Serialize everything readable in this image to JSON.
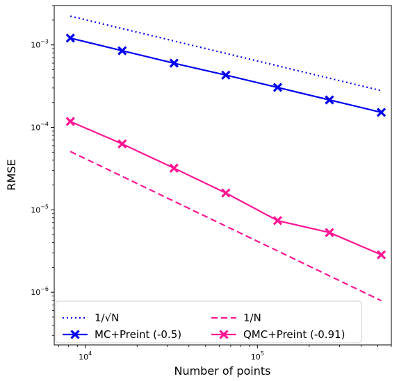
{
  "chart_data": {
    "type": "line",
    "xlabel": "Number of points",
    "ylabel": "RMSE",
    "xscale": "log",
    "yscale": "log",
    "xlim": [
      6600,
      600000
    ],
    "ylim": [
      2.3e-07,
      0.003
    ],
    "x_ticks": [
      {
        "value": 10000,
        "base": "10",
        "exp": "4"
      },
      {
        "value": 100000,
        "base": "10",
        "exp": "5"
      }
    ],
    "y_ticks": [
      {
        "value": 1e-06,
        "base": "10",
        "exp": "−6"
      },
      {
        "value": 1e-05,
        "base": "10",
        "exp": "−5"
      },
      {
        "value": 0.0001,
        "base": "10",
        "exp": "−4"
      },
      {
        "value": 0.001,
        "base": "10",
        "exp": "−3"
      }
    ],
    "grid": false,
    "legend": "lower-center",
    "series": [
      {
        "name": "1/√N",
        "style": "dotted",
        "color": "#0000ee",
        "marker": "none",
        "x": [
          8192,
          524288
        ],
        "y": [
          0.00223,
          0.000279
        ]
      },
      {
        "name": "1/N",
        "style": "dashed",
        "color": "#ff1493",
        "marker": "none",
        "x": [
          8192,
          524288
        ],
        "y": [
          5.1e-05,
          7.9e-07
        ]
      },
      {
        "name": "MC+Preint (-0.5)",
        "style": "solid",
        "color": "#0000ee",
        "marker": "x",
        "x": [
          8192,
          16384,
          32768,
          65536,
          131072,
          262144,
          524288
        ],
        "y": [
          0.00121,
          0.00085,
          0.0006,
          0.00043,
          0.000305,
          0.000215,
          0.000152
        ]
      },
      {
        "name": "QMC+Preint (-0.91)",
        "style": "solid",
        "color": "#ff1493",
        "marker": "x",
        "x": [
          8192,
          16384,
          32768,
          65536,
          131072,
          262144,
          524288
        ],
        "y": [
          0.000118,
          6.3e-05,
          3.2e-05,
          1.6e-05,
          7.4e-06,
          5.3e-06,
          2.85e-06
        ]
      }
    ]
  }
}
